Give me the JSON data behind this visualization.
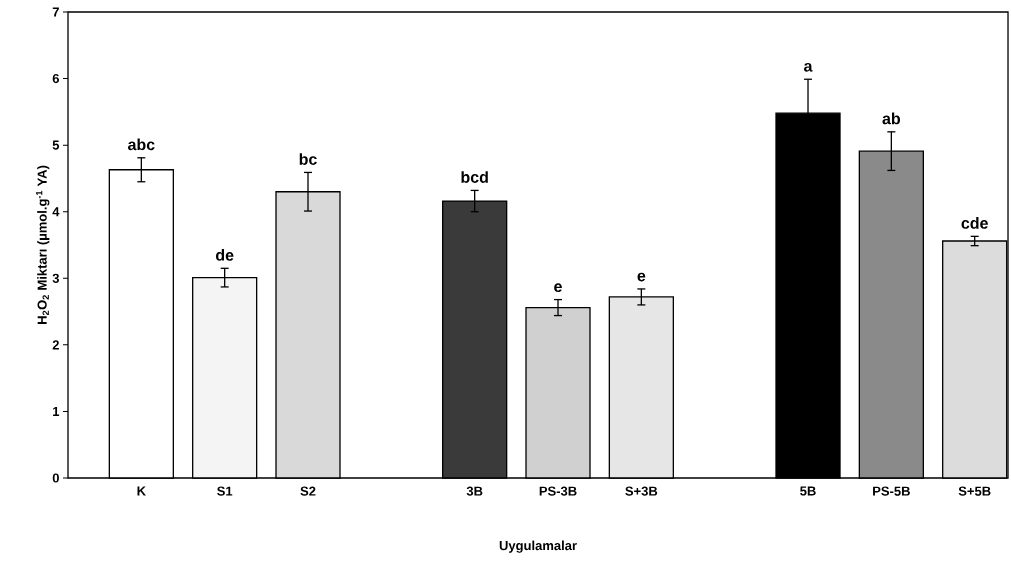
{
  "chart_data": {
    "type": "bar",
    "xlabel": "Uygulamalar",
    "ylabel": "H$_{2}$O$_{2}$ Miktarı (µmol.g$^{-1}$ YA)",
    "categories": [
      "K",
      "S1",
      "S2",
      null,
      "3B",
      "PS-3B",
      "S+3B",
      null,
      "5B",
      "PS-5B",
      "S+5B"
    ],
    "values": [
      4.63,
      3.01,
      4.3,
      null,
      4.16,
      2.56,
      2.72,
      null,
      5.48,
      4.91,
      3.56
    ],
    "errors": [
      0.18,
      0.14,
      0.29,
      null,
      0.16,
      0.12,
      0.12,
      null,
      0.51,
      0.29,
      0.07
    ],
    "value_labels": [
      "abc",
      "de",
      "bc",
      null,
      "bcd",
      "e",
      "e",
      null,
      "a",
      "ab",
      "cde"
    ],
    "colors": [
      "#ffffff",
      "#f4f4f4",
      "#d9d9d9",
      null,
      "#3a3a3a",
      "#d0d0d0",
      "#e6e6e6",
      null,
      "#000000",
      "#8a8a8a",
      "#dcdcdc"
    ],
    "ylim": [
      0,
      7
    ],
    "yticks": [
      0,
      1,
      2,
      3,
      4,
      5,
      6,
      7
    ],
    "grid": false
  }
}
